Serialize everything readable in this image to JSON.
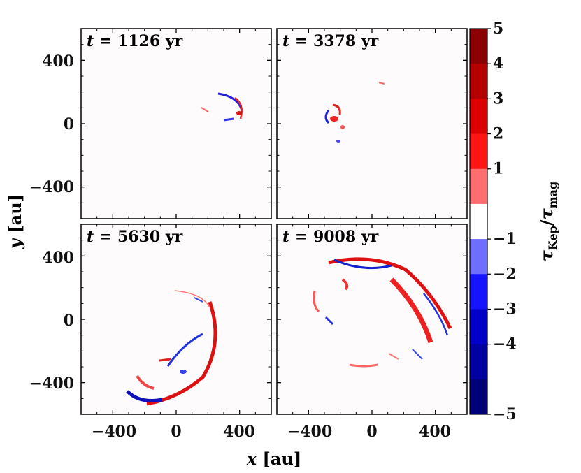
{
  "chart_data": {
    "type": "heatmap",
    "panels": [
      {
        "label_prefix": "t",
        "time": "1126",
        "unit": "yr"
      },
      {
        "label_prefix": "t",
        "time": "3378",
        "unit": "yr"
      },
      {
        "label_prefix": "t",
        "time": "5630",
        "unit": "yr"
      },
      {
        "label_prefix": "t",
        "time": "9008",
        "unit": "yr"
      }
    ],
    "xlim": [
      -600,
      600
    ],
    "ylim": [
      -600,
      600
    ],
    "xticks": [
      "−400",
      "0",
      "400"
    ],
    "yticks": [
      "400",
      "0",
      "−400"
    ],
    "xlabel_var": "x",
    "xlabel_unit": "[au]",
    "ylabel_var": "y",
    "ylabel_unit": "[au]",
    "colorbar": {
      "label_main": "τ",
      "label_sub1": "Kep",
      "label_sub2": "mag",
      "ticks": [
        "5",
        "4",
        "3",
        "2",
        "1",
        "−1",
        "−2",
        "−3",
        "−4",
        "−5"
      ],
      "colors": [
        "#8b0000",
        "#b40000",
        "#dc0000",
        "#ff1414",
        "#ff6e6e",
        "#ffffff",
        "#6e6eff",
        "#1414ff",
        "#0000c8",
        "#0000a0",
        "#000078"
      ]
    }
  }
}
